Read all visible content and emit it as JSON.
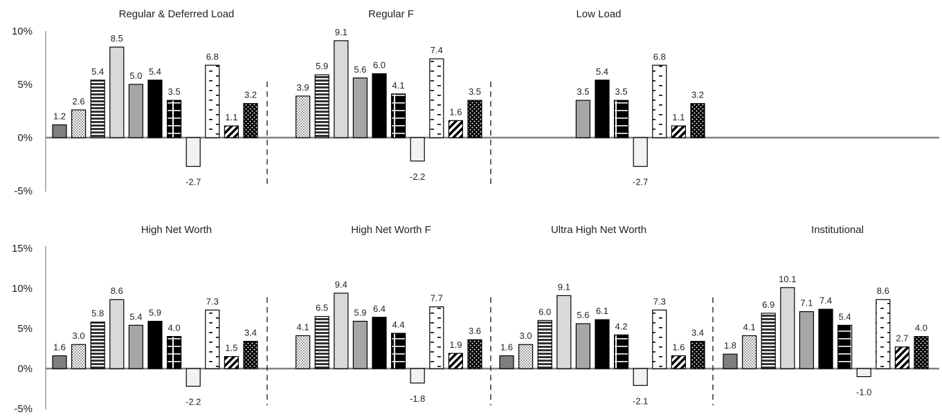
{
  "chart_data": {
    "type": "bar",
    "colors": {
      "dark_gray": "#7f7f7f",
      "mid_gray": "#a6a6a6",
      "light_gray": "#d9d9d9",
      "very_light": "#f2f2f2",
      "black": "#000000",
      "white": "#ffffff",
      "axis": "#808080"
    },
    "series_styles": [
      {
        "fill": "dark-gray"
      },
      {
        "fill": "dotted"
      },
      {
        "fill": "horizontal-stripes"
      },
      {
        "fill": "light-gray"
      },
      {
        "fill": "mid-gray"
      },
      {
        "fill": "black"
      },
      {
        "fill": "black-with-white-cross"
      },
      {
        "fill": "very-light-gray"
      },
      {
        "fill": "white-with-dashes"
      },
      {
        "fill": "diagonal-stripes"
      },
      {
        "fill": "black-with-white-dots"
      }
    ],
    "rows": [
      {
        "y_ticks": [
          10,
          5,
          0,
          -5
        ],
        "y_tick_labels": [
          "10%",
          "5%",
          "0%",
          "-5%"
        ],
        "ylim": [
          -5,
          10
        ],
        "panels": [
          {
            "title": "Regular & Deferred Load",
            "values": [
              1.2,
              2.6,
              5.4,
              8.5,
              5.0,
              5.4,
              3.5,
              -2.7,
              6.8,
              1.1,
              3.2
            ]
          },
          {
            "title": "Regular F",
            "values": [
              null,
              3.9,
              5.9,
              9.1,
              5.6,
              6.0,
              4.1,
              -2.2,
              7.4,
              1.6,
              3.5
            ]
          },
          {
            "title": "Low Load",
            "values": [
              null,
              null,
              null,
              null,
              3.5,
              5.4,
              3.5,
              -2.7,
              6.8,
              1.1,
              3.2
            ]
          }
        ]
      },
      {
        "y_ticks": [
          15,
          10,
          5,
          0,
          -5
        ],
        "y_tick_labels": [
          "15%",
          "10%",
          "5%",
          "0%",
          "-5%"
        ],
        "ylim": [
          -5,
          15
        ],
        "panels": [
          {
            "title": "High Net Worth",
            "values": [
              1.6,
              3.0,
              5.8,
              8.6,
              5.4,
              5.9,
              4.0,
              -2.2,
              7.3,
              1.5,
              3.4
            ]
          },
          {
            "title": "High Net Worth F",
            "values": [
              null,
              4.1,
              6.5,
              9.4,
              5.9,
              6.4,
              4.4,
              -1.8,
              7.7,
              1.9,
              3.6
            ]
          },
          {
            "title": "Ultra High Net Worth",
            "values": [
              1.6,
              3.0,
              6.0,
              9.1,
              5.6,
              6.1,
              4.2,
              -2.1,
              7.3,
              1.6,
              3.4
            ]
          },
          {
            "title": "Institutional",
            "values": [
              1.8,
              4.1,
              6.9,
              10.1,
              7.1,
              7.4,
              5.4,
              -1.0,
              8.6,
              2.7,
              4.0
            ]
          }
        ]
      }
    ]
  }
}
